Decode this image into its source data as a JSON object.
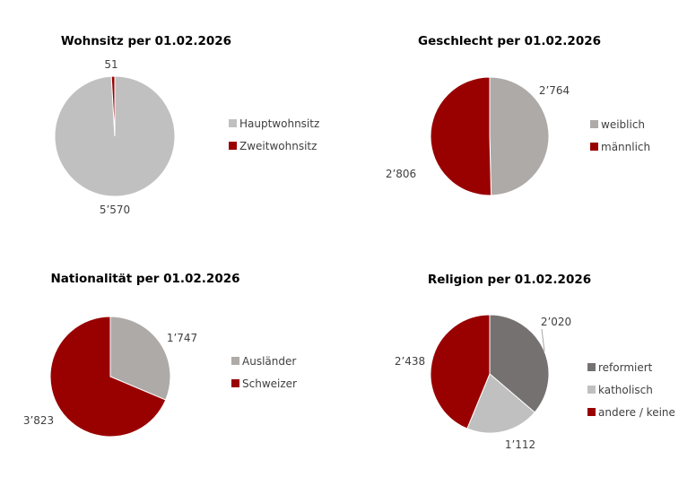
{
  "chart_data": [
    {
      "type": "pie",
      "title": "Wohnsitz per 01.02.2026",
      "slices": [
        {
          "label": "Hauptwohnsitz",
          "value": 5570,
          "display": "5’570",
          "color": "#C0C0C0"
        },
        {
          "label": "Zweitwohnsitz",
          "value": 51,
          "display": "51",
          "color": "#990000"
        }
      ],
      "legend": "right"
    },
    {
      "type": "pie",
      "title": "Geschlecht per 01.02.2026",
      "slices": [
        {
          "label": "weiblich",
          "value": 2764,
          "display": "2’764",
          "color": "#AEAAA8"
        },
        {
          "label": "männlich",
          "value": 2806,
          "display": "2’806",
          "color": "#990000"
        }
      ],
      "legend": "right"
    },
    {
      "type": "pie",
      "title": "Nationalität per 01.02.2026",
      "slices": [
        {
          "label": "Ausländer",
          "value": 1747,
          "display": "1’747",
          "color": "#AEAAA8"
        },
        {
          "label": "Schweizer",
          "value": 3823,
          "display": "3’823",
          "color": "#990000"
        }
      ],
      "legend": "right"
    },
    {
      "type": "pie",
      "title": "Religion per 01.02.2026",
      "slices": [
        {
          "label": "reformiert",
          "value": 2020,
          "display": "2’020",
          "color": "#767171"
        },
        {
          "label": "katholisch",
          "value": 1112,
          "display": "1’112",
          "color": "#C0C0C0"
        },
        {
          "label": "andere / keine",
          "value": 2438,
          "display": "2’438",
          "color": "#990000"
        }
      ],
      "legend": "right"
    }
  ]
}
